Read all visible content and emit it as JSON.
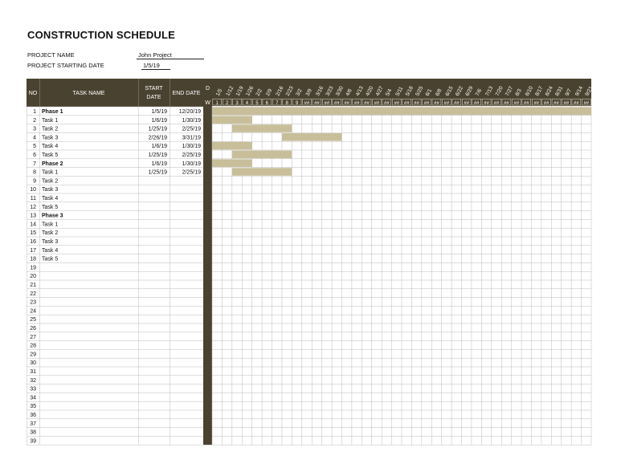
{
  "title": "CONSTRUCTION SCHEDULE",
  "project": {
    "name_label": "PROJECT NAME",
    "name_value": "John Project",
    "start_label": "PROJECT STARTING DATE",
    "start_value": "1/5/19"
  },
  "headers": {
    "no": "NO",
    "task_name": "TASK NAME",
    "start_date_line1": "START",
    "start_date_line2": "DATE",
    "end_date": "END DATE",
    "d": "D",
    "w": "W"
  },
  "week_dates": [
    "1/5",
    "1/12",
    "1/19",
    "1/26",
    "2/2",
    "2/9",
    "2/16",
    "2/23",
    "3/2",
    "3/9",
    "3/16",
    "3/23",
    "3/30",
    "4/6",
    "4/13",
    "4/20",
    "4/27",
    "5/4",
    "5/11",
    "5/18",
    "5/25",
    "6/1",
    "6/8",
    "6/15",
    "6/22",
    "6/29",
    "7/6",
    "7/13",
    "7/20",
    "7/27",
    "8/3",
    "8/10",
    "8/17",
    "8/24",
    "8/31",
    "9/7",
    "9/14",
    "9/21"
  ],
  "week_numbers": [
    "1",
    "2",
    "3",
    "4",
    "5",
    "6",
    "7",
    "8",
    "9",
    "##",
    "##",
    "##",
    "##",
    "##",
    "##",
    "##",
    "##",
    "##",
    "##",
    "##",
    "##",
    "##",
    "##",
    "##",
    "##",
    "##",
    "##",
    "##",
    "##",
    "##",
    "##",
    "##",
    "##",
    "##",
    "##",
    "##",
    "##",
    "##"
  ],
  "rows": [
    {
      "no": "1",
      "task": "Phase 1",
      "start": "1/5/19",
      "end": "12/20/19",
      "bold": true,
      "bar": [
        0,
        38
      ]
    },
    {
      "no": "2",
      "task": "Task 1",
      "start": "1/6/19",
      "end": "1/30/19",
      "bar": [
        0,
        4
      ]
    },
    {
      "no": "3",
      "task": "Task 2",
      "start": "1/25/19",
      "end": "2/25/19",
      "bar": [
        2,
        8
      ]
    },
    {
      "no": "4",
      "task": "Task 3",
      "start": "2/26/19",
      "end": "3/31/19",
      "bar": [
        7,
        13
      ]
    },
    {
      "no": "5",
      "task": "Task 4",
      "start": "1/6/19",
      "end": "1/30/19",
      "bar": [
        0,
        4
      ]
    },
    {
      "no": "6",
      "task": "Task 5",
      "start": "1/25/19",
      "end": "2/25/19",
      "bar": [
        2,
        8
      ]
    },
    {
      "no": "7",
      "task": "Phase 2",
      "start": "1/6/19",
      "end": "1/30/19",
      "bold": true,
      "bar": [
        0,
        4
      ]
    },
    {
      "no": "8",
      "task": "Task 1",
      "start": "1/25/19",
      "end": "2/25/19",
      "bar": [
        2,
        8
      ]
    },
    {
      "no": "9",
      "task": "Task 2",
      "start": "",
      "end": ""
    },
    {
      "no": "10",
      "task": "Task 3",
      "start": "",
      "end": ""
    },
    {
      "no": "11",
      "task": "Task 4",
      "start": "",
      "end": ""
    },
    {
      "no": "12",
      "task": "Task 5",
      "start": "",
      "end": ""
    },
    {
      "no": "13",
      "task": "Phase 3",
      "start": "",
      "end": "",
      "bold": true
    },
    {
      "no": "14",
      "task": "Task 1",
      "start": "",
      "end": ""
    },
    {
      "no": "15",
      "task": "Task 2",
      "start": "",
      "end": ""
    },
    {
      "no": "16",
      "task": "Task 3",
      "start": "",
      "end": ""
    },
    {
      "no": "17",
      "task": "Task 4",
      "start": "",
      "end": ""
    },
    {
      "no": "18",
      "task": "Task 5",
      "start": "",
      "end": ""
    },
    {
      "no": "19",
      "task": "",
      "start": "",
      "end": ""
    },
    {
      "no": "20",
      "task": "",
      "start": "",
      "end": ""
    },
    {
      "no": "21",
      "task": "",
      "start": "",
      "end": ""
    },
    {
      "no": "22",
      "task": "",
      "start": "",
      "end": ""
    },
    {
      "no": "23",
      "task": "",
      "start": "",
      "end": ""
    },
    {
      "no": "24",
      "task": "",
      "start": "",
      "end": ""
    },
    {
      "no": "25",
      "task": "",
      "start": "",
      "end": ""
    },
    {
      "no": "26",
      "task": "",
      "start": "",
      "end": ""
    },
    {
      "no": "27",
      "task": "",
      "start": "",
      "end": ""
    },
    {
      "no": "28",
      "task": "",
      "start": "",
      "end": ""
    },
    {
      "no": "29",
      "task": "",
      "start": "",
      "end": ""
    },
    {
      "no": "30",
      "task": "",
      "start": "",
      "end": ""
    },
    {
      "no": "31",
      "task": "",
      "start": "",
      "end": ""
    },
    {
      "no": "32",
      "task": "",
      "start": "",
      "end": ""
    },
    {
      "no": "33",
      "task": "",
      "start": "",
      "end": ""
    },
    {
      "no": "34",
      "task": "",
      "start": "",
      "end": ""
    },
    {
      "no": "35",
      "task": "",
      "start": "",
      "end": ""
    },
    {
      "no": "36",
      "task": "",
      "start": "",
      "end": ""
    },
    {
      "no": "37",
      "task": "",
      "start": "",
      "end": ""
    },
    {
      "no": "38",
      "task": "",
      "start": "",
      "end": ""
    },
    {
      "no": "39",
      "task": "",
      "start": "",
      "end": ""
    }
  ],
  "colors": {
    "header_bg": "#4a4230",
    "header_text": "#ffffff",
    "bar": "#c8bf9a",
    "grid": "#bcbcbc"
  }
}
